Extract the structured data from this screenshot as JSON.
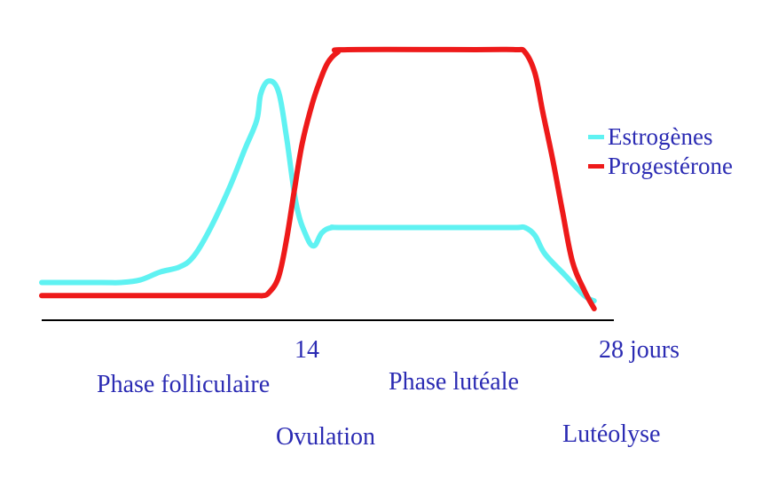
{
  "chart_data": {
    "type": "line",
    "title": "",
    "xlabel": "",
    "ylabel": "",
    "xlim": [
      0,
      29
    ],
    "ylim": [
      0,
      100
    ],
    "x_tick_labels": [
      {
        "x": 14,
        "label": "14"
      },
      {
        "x": 28,
        "label": "28 jours"
      }
    ],
    "phase_labels": {
      "follicular": "Phase folliculaire",
      "luteal": "Phase lutéale",
      "ovulation": "Ovulation",
      "luteolysis": "Lutéolyse"
    },
    "legend_position": "right",
    "series": [
      {
        "name": "Estrogènes",
        "color": "#5ff2f2",
        "points": [
          [
            0,
            10
          ],
          [
            3,
            10
          ],
          [
            4,
            10
          ],
          [
            5,
            11
          ],
          [
            6,
            14
          ],
          [
            7,
            16
          ],
          [
            7.7,
            20
          ],
          [
            8.5,
            30
          ],
          [
            9.5,
            46
          ],
          [
            10.3,
            61
          ],
          [
            10.9,
            72
          ],
          [
            11.1,
            82
          ],
          [
            11.5,
            87
          ],
          [
            12.0,
            83
          ],
          [
            12.4,
            66
          ],
          [
            12.9,
            40
          ],
          [
            13.4,
            28
          ],
          [
            13.8,
            24
          ],
          [
            14.2,
            29
          ],
          [
            14.7,
            31
          ],
          [
            15.5,
            31
          ],
          [
            22,
            31
          ],
          [
            24,
            31
          ],
          [
            24.5,
            31
          ],
          [
            25,
            28
          ],
          [
            25.5,
            21
          ],
          [
            26.5,
            13
          ],
          [
            27.5,
            5
          ],
          [
            28,
            3
          ]
        ]
      },
      {
        "name": "Progestérone",
        "color": "#ee1a1a",
        "points": [
          [
            0,
            5
          ],
          [
            5,
            5
          ],
          [
            10,
            5
          ],
          [
            11,
            5
          ],
          [
            11.2,
            5
          ],
          [
            11.5,
            6
          ],
          [
            12,
            12
          ],
          [
            12.4,
            26
          ],
          [
            12.8,
            45
          ],
          [
            13.2,
            63
          ],
          [
            13.7,
            78
          ],
          [
            14.1,
            87
          ],
          [
            14.5,
            94
          ],
          [
            15,
            98
          ],
          [
            15.5,
            99
          ],
          [
            22,
            99
          ],
          [
            24,
            99
          ],
          [
            24.5,
            98
          ],
          [
            25,
            90
          ],
          [
            25.4,
            75
          ],
          [
            25.9,
            57
          ],
          [
            26.4,
            37
          ],
          [
            26.9,
            18
          ],
          [
            27.5,
            7
          ],
          [
            28,
            0
          ]
        ]
      }
    ]
  }
}
